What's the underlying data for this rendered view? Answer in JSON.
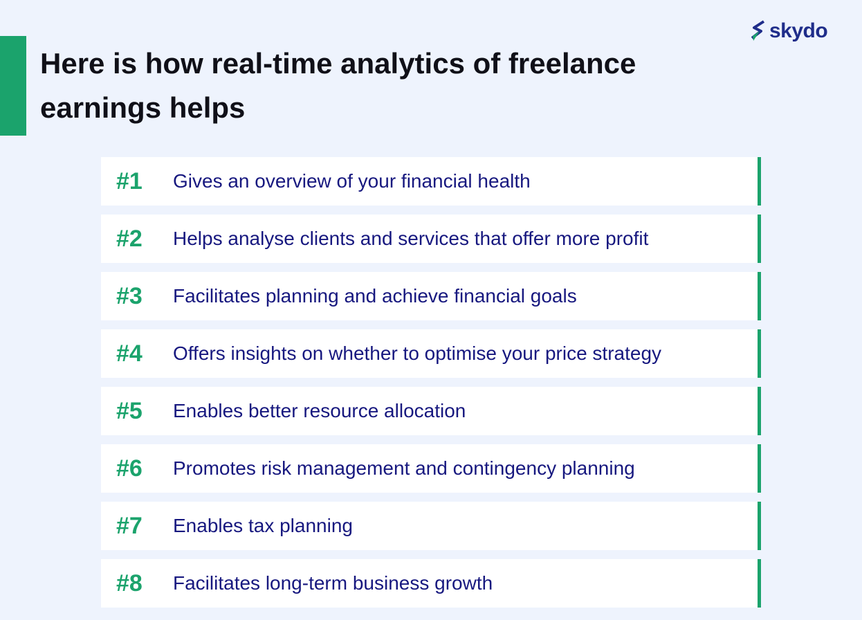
{
  "header": {
    "title": "Here is how real-time analytics of freelance earnings helps",
    "logo": "skydo"
  },
  "items": [
    {
      "number": "#1",
      "text": "Gives an overview of your financial health"
    },
    {
      "number": "#2",
      "text": "Helps analyse clients and services that offer more profit"
    },
    {
      "number": "#3",
      "text": "Facilitates planning and achieve financial goals"
    },
    {
      "number": "#4",
      "text": "Offers insights on whether to optimise your price strategy"
    },
    {
      "number": "#5",
      "text": "Enables better resource allocation"
    },
    {
      "number": "#6",
      "text": "Promotes risk management and contingency planning"
    },
    {
      "number": "#7",
      "text": "Enables tax planning"
    },
    {
      "number": "#8",
      "text": "Facilitates long-term business growth"
    }
  ]
}
